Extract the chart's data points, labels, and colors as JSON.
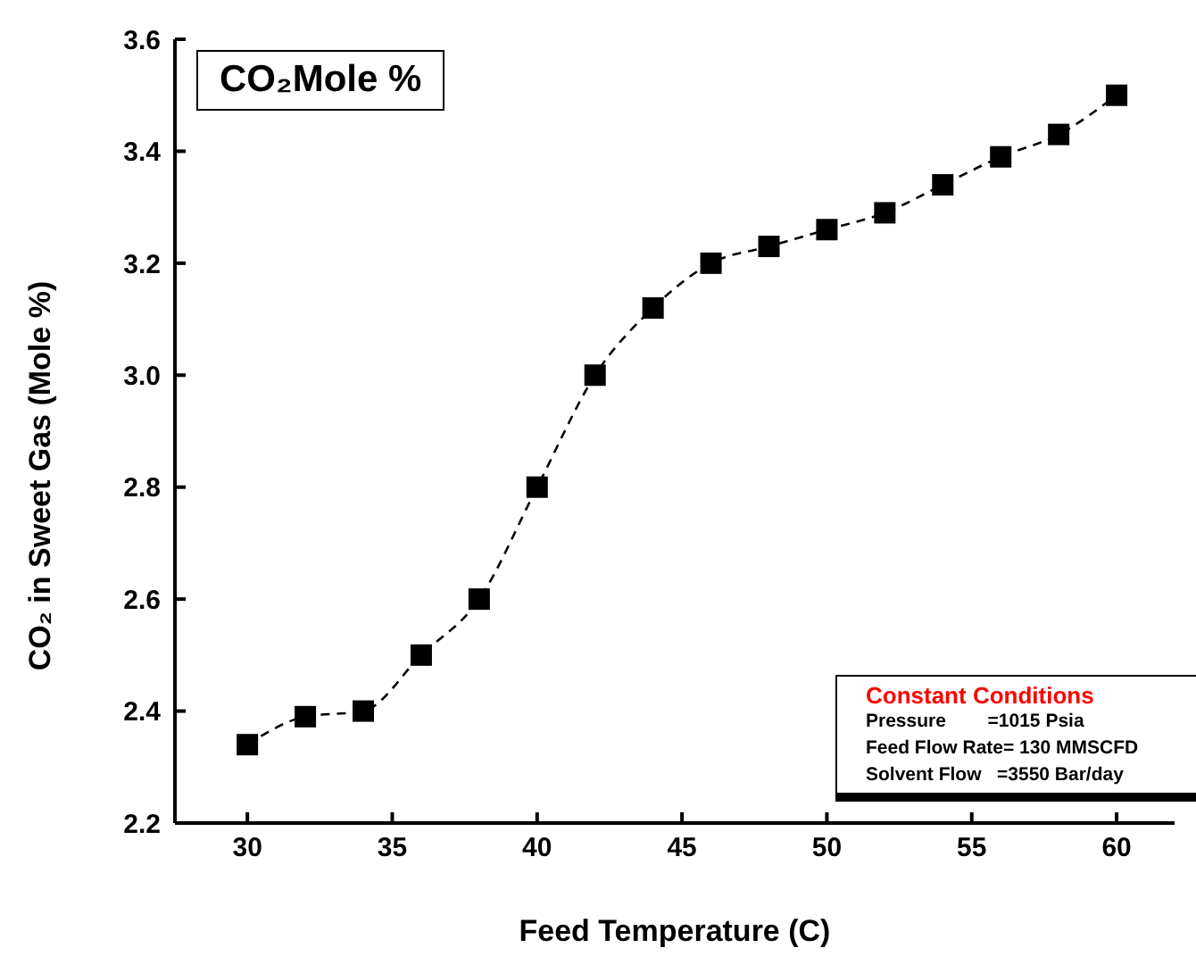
{
  "chart_data": {
    "type": "line",
    "xlabel": "Feed Temperature (C)",
    "ylabel": "CO₂ in Sweet Gas (Mole %)",
    "x": [
      30,
      32,
      34,
      36,
      38,
      40,
      42,
      44,
      46,
      48,
      50,
      52,
      54,
      56,
      58,
      60
    ],
    "series": [
      {
        "color": "#000000",
        "values": [
          2.34,
          2.39,
          2.4,
          2.5,
          2.6,
          2.8,
          3.0,
          3.12,
          3.2,
          3.23,
          3.26,
          3.29,
          3.34,
          3.39,
          3.43,
          3.5
        ]
      }
    ],
    "xlim": [
      27.5,
      62
    ],
    "xticks": [
      30,
      35,
      40,
      45,
      50,
      55,
      60
    ],
    "ylim": [
      2.2,
      3.6
    ],
    "yticks": [
      2.2,
      2.4,
      2.6,
      2.8,
      {
        "value": 3,
        "label": "3.0"
      },
      3.2,
      3.4,
      3.6
    ],
    "marker": "square",
    "line_style": "dashed",
    "grid": false,
    "legend": false,
    "annotations": [
      "CO₂Mole %",
      "Constant Conditions",
      "Pressure        =1015 Psia",
      "Feed Flow Rate= 130 MMSCFD",
      "Solvent Flow   =3550 Bar/day"
    ]
  }
}
